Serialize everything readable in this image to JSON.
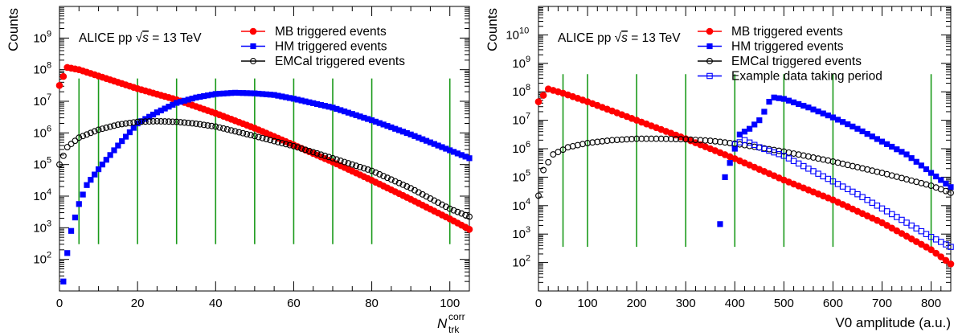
{
  "chart_data": [
    {
      "type": "scatter",
      "ylabel": "Counts",
      "xlabel": "N",
      "xlabel_sup": "corr",
      "xlabel_sub": "trk",
      "annotation": {
        "prefix": "ALICE pp ",
        "sqrt": "√",
        "s": "s",
        "suffix": " = 13 TeV"
      },
      "xlim": [
        0,
        105
      ],
      "ylog": true,
      "ylim_exp": [
        1,
        10
      ],
      "xticks": [
        0,
        20,
        40,
        60,
        80,
        100
      ],
      "yticks": [
        {
          "exp": 2,
          "base": "10",
          "sup": "2"
        },
        {
          "exp": 3,
          "base": "10",
          "sup": "3"
        },
        {
          "exp": 4,
          "base": "10",
          "sup": "4"
        },
        {
          "exp": 5,
          "base": "10",
          "sup": "5"
        },
        {
          "exp": 6,
          "base": "10",
          "sup": "6"
        },
        {
          "exp": 7,
          "base": "10",
          "sup": "7"
        },
        {
          "exp": 8,
          "base": "10",
          "sup": "8"
        },
        {
          "exp": 9,
          "base": "10",
          "sup": "9"
        }
      ],
      "vlines": [
        5,
        10,
        20,
        30,
        40,
        50,
        60,
        70,
        80,
        100
      ],
      "series": [
        {
          "name": "MB triggered events",
          "marker": "circle-filled",
          "color": "#ff0000",
          "x": [
            0,
            2,
            5,
            10,
            20,
            30,
            40,
            50,
            60,
            70,
            80,
            90,
            100,
            105
          ],
          "log10": [
            7.5,
            8.07,
            8.0,
            7.8,
            7.4,
            7.05,
            6.62,
            6.15,
            5.62,
            5.08,
            4.5,
            3.9,
            3.28,
            2.95
          ]
        },
        {
          "name": "HM triggered events",
          "marker": "square-filled",
          "color": "#0000ff",
          "x": [
            1,
            2,
            3,
            5,
            7,
            10,
            15,
            20,
            25,
            30,
            35,
            40,
            45,
            50,
            55,
            60,
            70,
            80,
            90,
            100,
            105
          ],
          "log10": [
            1.3,
            2.2,
            2.9,
            3.75,
            4.35,
            4.85,
            5.6,
            6.3,
            6.65,
            6.95,
            7.12,
            7.23,
            7.27,
            7.25,
            7.2,
            7.08,
            6.8,
            6.4,
            5.95,
            5.45,
            5.2
          ]
        },
        {
          "name": "EMCal triggered events",
          "marker": "circle-open",
          "color": "#000000",
          "x": [
            0,
            2,
            5,
            10,
            15,
            20,
            25,
            30,
            35,
            40,
            45,
            50,
            60,
            70,
            80,
            90,
            100,
            105
          ],
          "log10": [
            5.0,
            5.55,
            5.85,
            6.1,
            6.26,
            6.35,
            6.37,
            6.35,
            6.29,
            6.2,
            6.05,
            5.9,
            5.58,
            5.2,
            4.8,
            4.25,
            3.6,
            3.35
          ]
        }
      ]
    },
    {
      "type": "scatter",
      "ylabel": "Counts",
      "xlabel": "V0 amplitude (a.u.)",
      "annotation": {
        "prefix": "ALICE pp ",
        "sqrt": "√",
        "s": "s",
        "suffix": " = 13 TeV"
      },
      "xlim": [
        0,
        840
      ],
      "ylog": true,
      "ylim_exp": [
        1,
        11
      ],
      "xticks": [
        0,
        100,
        200,
        300,
        400,
        500,
        600,
        700,
        800
      ],
      "yticks": [
        {
          "exp": 2,
          "base": "10",
          "sup": "2"
        },
        {
          "exp": 3,
          "base": "10",
          "sup": "3"
        },
        {
          "exp": 4,
          "base": "10",
          "sup": "4"
        },
        {
          "exp": 5,
          "base": "10",
          "sup": "5"
        },
        {
          "exp": 6,
          "base": "10",
          "sup": "6"
        },
        {
          "exp": 7,
          "base": "10",
          "sup": "7"
        },
        {
          "exp": 8,
          "base": "10",
          "sup": "8"
        },
        {
          "exp": 9,
          "base": "10",
          "sup": "9"
        },
        {
          "exp": 10,
          "base": "10",
          "sup": "10"
        }
      ],
      "vlines": [
        50,
        100,
        200,
        300,
        400,
        500,
        600,
        800
      ],
      "series": [
        {
          "name": "MB triggered events",
          "marker": "circle-filled",
          "color": "#ff0000",
          "x": [
            0,
            20,
            50,
            100,
            200,
            300,
            400,
            500,
            600,
            700,
            800,
            840
          ],
          "log10": [
            7.65,
            8.1,
            7.95,
            7.65,
            7.0,
            6.35,
            5.65,
            4.9,
            4.2,
            3.4,
            2.45,
            1.95
          ]
        },
        {
          "name": "HM triggered events",
          "marker": "square-filled",
          "color": "#0000ff",
          "x": [
            370,
            380,
            410,
            430,
            450,
            460,
            470,
            480,
            500,
            550,
            600,
            650,
            700,
            750,
            800,
            840
          ],
          "log10": [
            3.35,
            5.0,
            6.5,
            6.7,
            7.0,
            7.3,
            7.65,
            7.8,
            7.75,
            7.45,
            7.1,
            6.7,
            6.25,
            5.8,
            5.15,
            4.65
          ]
        },
        {
          "name": "EMCal triggered events",
          "marker": "circle-open",
          "color": "#000000",
          "x": [
            0,
            10,
            30,
            60,
            100,
            150,
            200,
            250,
            300,
            350,
            400,
            500,
            600,
            700,
            800,
            840
          ],
          "log10": [
            4.35,
            5.25,
            5.8,
            6.05,
            6.2,
            6.3,
            6.35,
            6.35,
            6.33,
            6.28,
            6.18,
            5.9,
            5.55,
            5.15,
            4.7,
            4.45
          ]
        },
        {
          "name": "Example data taking period",
          "marker": "square-open",
          "color": "#0000ff",
          "x": [
            400,
            420,
            450,
            500,
            550,
            600,
            650,
            700,
            750,
            800,
            840
          ],
          "log10": [
            6.15,
            6.3,
            6.05,
            5.75,
            5.3,
            4.85,
            4.4,
            3.9,
            3.4,
            2.9,
            2.55
          ]
        }
      ]
    }
  ]
}
